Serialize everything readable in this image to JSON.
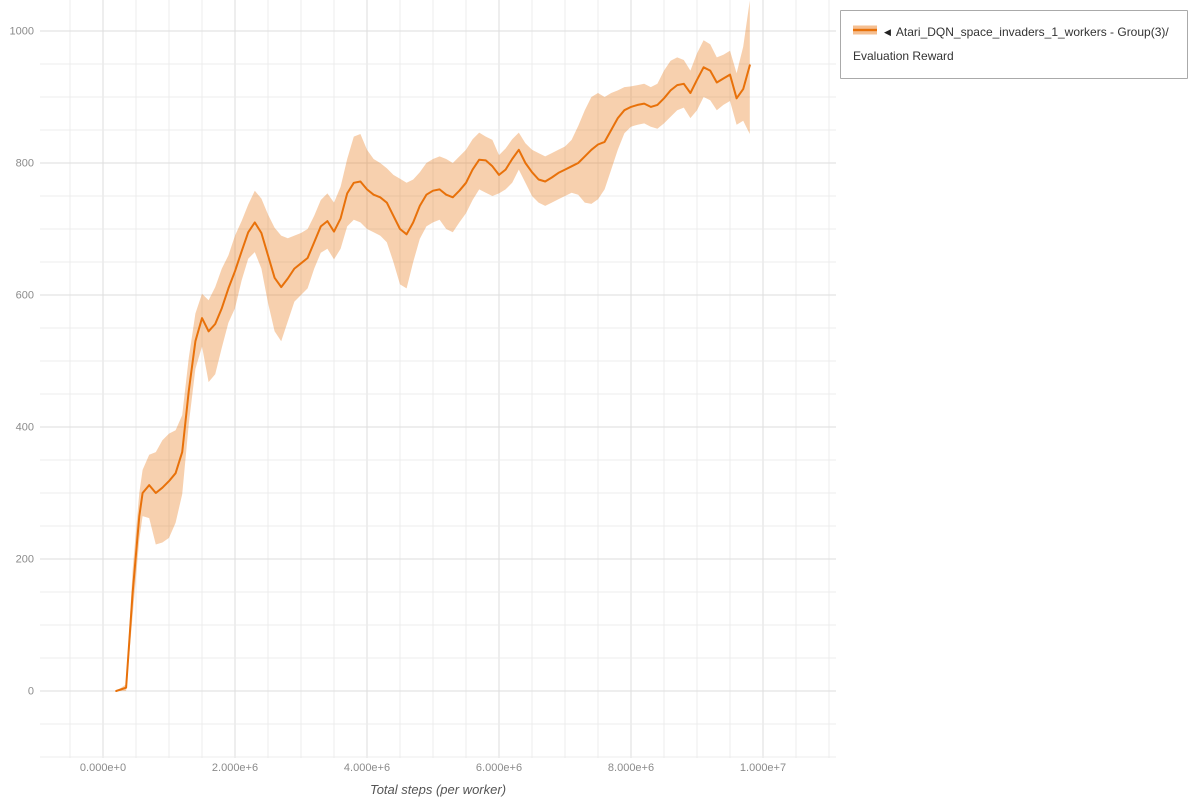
{
  "chart_data": {
    "type": "line",
    "title": "",
    "xlabel": "Total steps (per worker)",
    "ylabel": "",
    "xlim": [
      0,
      10000000
    ],
    "ylim": [
      0,
      1000
    ],
    "grid": true,
    "legend_position": "top-right",
    "legend_marker": "◀",
    "x_ticks": [
      {
        "value": 0,
        "label": "0.000e+0"
      },
      {
        "value": 2000000,
        "label": "2.000e+6"
      },
      {
        "value": 4000000,
        "label": "4.000e+6"
      },
      {
        "value": 6000000,
        "label": "6.000e+6"
      },
      {
        "value": 8000000,
        "label": "8.000e+6"
      },
      {
        "value": 10000000,
        "label": "1.000e+7"
      }
    ],
    "y_ticks": [
      0,
      200,
      400,
      600,
      800,
      1000
    ],
    "series": [
      {
        "name": "Atari_DQN_space_invaders_1_workers - Group(3)/Evaluation Reward",
        "color": "#e8710a",
        "band_color": "#e8710a",
        "band_opacity": 0.33,
        "x_millions": [
          0.2,
          0.35,
          0.45,
          0.55,
          0.6,
          0.7,
          0.8,
          0.9,
          1.0,
          1.1,
          1.2,
          1.3,
          1.4,
          1.5,
          1.6,
          1.7,
          1.8,
          1.9,
          2.0,
          2.1,
          2.2,
          2.3,
          2.4,
          2.5,
          2.6,
          2.7,
          2.8,
          2.9,
          3.0,
          3.1,
          3.2,
          3.3,
          3.4,
          3.5,
          3.6,
          3.7,
          3.8,
          3.9,
          4.0,
          4.1,
          4.2,
          4.3,
          4.4,
          4.5,
          4.6,
          4.7,
          4.8,
          4.9,
          5.0,
          5.1,
          5.2,
          5.3,
          5.4,
          5.5,
          5.6,
          5.7,
          5.8,
          5.9,
          6.0,
          6.1,
          6.2,
          6.3,
          6.4,
          6.5,
          6.6,
          6.7,
          6.8,
          6.9,
          7.0,
          7.1,
          7.2,
          7.3,
          7.4,
          7.5,
          7.6,
          7.7,
          7.8,
          7.9,
          8.0,
          8.1,
          8.2,
          8.3,
          8.4,
          8.5,
          8.6,
          8.7,
          8.8,
          8.9,
          9.0,
          9.1,
          9.2,
          9.3,
          9.4,
          9.5,
          9.6,
          9.7,
          9.8
        ],
        "mean": [
          0,
          5,
          150,
          265,
          300,
          312,
          300,
          308,
          318,
          330,
          362,
          455,
          530,
          565,
          545,
          556,
          580,
          610,
          636,
          666,
          695,
          710,
          694,
          660,
          626,
          612,
          625,
          640,
          648,
          656,
          680,
          704,
          712,
          696,
          716,
          754,
          770,
          772,
          760,
          752,
          748,
          740,
          720,
          700,
          692,
          710,
          735,
          752,
          758,
          760,
          752,
          748,
          758,
          770,
          790,
          805,
          804,
          795,
          782,
          790,
          806,
          820,
          800,
          786,
          775,
          772,
          778,
          785,
          790,
          795,
          800,
          810,
          820,
          828,
          832,
          850,
          868,
          880,
          885,
          888,
          890,
          885,
          888,
          898,
          910,
          918,
          920,
          906,
          926,
          945,
          940,
          922,
          928,
          934,
          898,
          912,
          948
        ],
        "lower": [
          0,
          0,
          115,
          230,
          265,
          262,
          222,
          225,
          232,
          255,
          298,
          405,
          488,
          522,
          468,
          480,
          520,
          558,
          580,
          622,
          655,
          665,
          640,
          588,
          545,
          530,
          560,
          590,
          600,
          610,
          640,
          664,
          670,
          654,
          670,
          704,
          714,
          710,
          700,
          695,
          690,
          680,
          650,
          616,
          610,
          650,
          685,
          704,
          710,
          714,
          700,
          695,
          710,
          724,
          744,
          760,
          755,
          750,
          754,
          760,
          770,
          790,
          770,
          750,
          740,
          735,
          740,
          745,
          750,
          755,
          752,
          740,
          738,
          745,
          760,
          790,
          820,
          845,
          855,
          858,
          860,
          855,
          852,
          860,
          870,
          880,
          884,
          868,
          880,
          900,
          895,
          880,
          888,
          894,
          858,
          864,
          844
        ],
        "upper": [
          0,
          10,
          185,
          300,
          335,
          358,
          362,
          380,
          390,
          395,
          418,
          505,
          572,
          602,
          592,
          612,
          640,
          660,
          690,
          712,
          737,
          758,
          746,
          722,
          702,
          690,
          686,
          690,
          694,
          700,
          720,
          744,
          754,
          740,
          764,
          806,
          840,
          844,
          820,
          806,
          800,
          792,
          782,
          776,
          770,
          775,
          786,
          800,
          806,
          810,
          806,
          800,
          810,
          820,
          836,
          846,
          840,
          835,
          812,
          822,
          836,
          846,
          830,
          820,
          815,
          810,
          815,
          820,
          825,
          835,
          856,
          880,
          900,
          906,
          900,
          906,
          910,
          915,
          916,
          918,
          920,
          915,
          920,
          940,
          955,
          960,
          956,
          940,
          966,
          986,
          980,
          960,
          964,
          970,
          936,
          976,
          1046
        ]
      }
    ]
  }
}
